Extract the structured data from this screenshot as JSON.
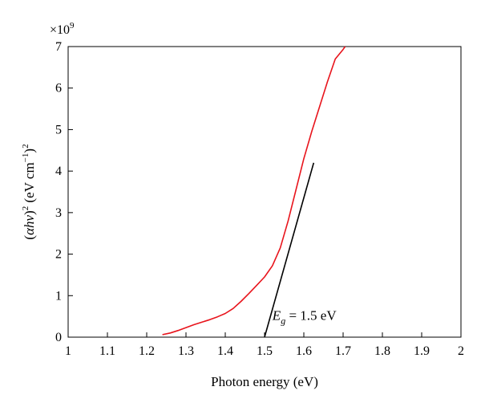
{
  "chart_data": {
    "type": "line",
    "xlabel": "Photon energy (eV)",
    "ylabel": {
      "open": "(",
      "alpha": "α",
      "h": "h",
      "nu": "ν",
      "close": ")",
      "sup1": "2",
      "unit_open": " (eV cm",
      "unit_exp": "−1",
      "unit_close": ")",
      "sup2": "2"
    },
    "y_multiplier": {
      "base": "×10",
      "exp": "9"
    },
    "xlim": [
      1,
      2
    ],
    "ylim": [
      0,
      7
    ],
    "x_ticks": [
      "1",
      "1.1",
      "1.2",
      "1.3",
      "1.4",
      "1.5",
      "1.6",
      "1.7",
      "1.8",
      "1.9",
      "2"
    ],
    "y_ticks": [
      "0",
      "1",
      "2",
      "3",
      "4",
      "5",
      "6",
      "7"
    ],
    "grid": false,
    "series": [
      {
        "color": "#e8141c",
        "x": [
          1.24,
          1.26,
          1.28,
          1.3,
          1.32,
          1.34,
          1.36,
          1.38,
          1.4,
          1.42,
          1.44,
          1.46,
          1.48,
          1.5,
          1.52,
          1.54,
          1.56,
          1.58,
          1.6,
          1.62,
          1.64,
          1.66,
          1.68,
          1.7,
          1.705
        ],
        "y": [
          0.06,
          0.1,
          0.16,
          0.23,
          0.3,
          0.36,
          0.42,
          0.49,
          0.57,
          0.69,
          0.86,
          1.05,
          1.25,
          1.45,
          1.72,
          2.15,
          2.8,
          3.55,
          4.3,
          4.95,
          5.55,
          6.15,
          6.7,
          6.93,
          7.0
        ]
      },
      {
        "color": "#000000",
        "x": [
          1.5,
          1.625
        ],
        "y": [
          0.0,
          4.2
        ]
      }
    ],
    "annotation": {
      "E": "E",
      "sub": "g",
      "text": " = 1.5 eV",
      "x": 1.52,
      "y": 0.42
    }
  }
}
